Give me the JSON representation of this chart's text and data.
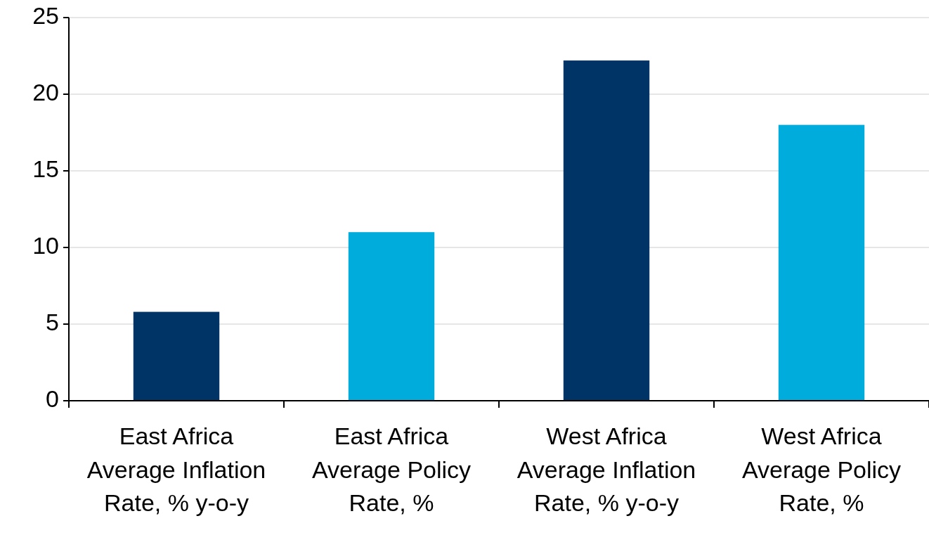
{
  "chart_data": {
    "type": "bar",
    "categories": [
      "East Africa Average Inflation Rate, % y-o-y",
      "East Africa Average Policy Rate, %",
      "West Africa Average Inflation Rate, % y-o-y",
      "West Africa Average Policy Rate, %"
    ],
    "values": [
      5.8,
      11.0,
      22.2,
      18.0
    ],
    "colors": [
      "#003366",
      "#00acdc",
      "#003366",
      "#00acdc"
    ],
    "ylim": [
      0,
      25
    ],
    "yticks": [
      0,
      5,
      10,
      15,
      20,
      25
    ],
    "grid": "y"
  }
}
